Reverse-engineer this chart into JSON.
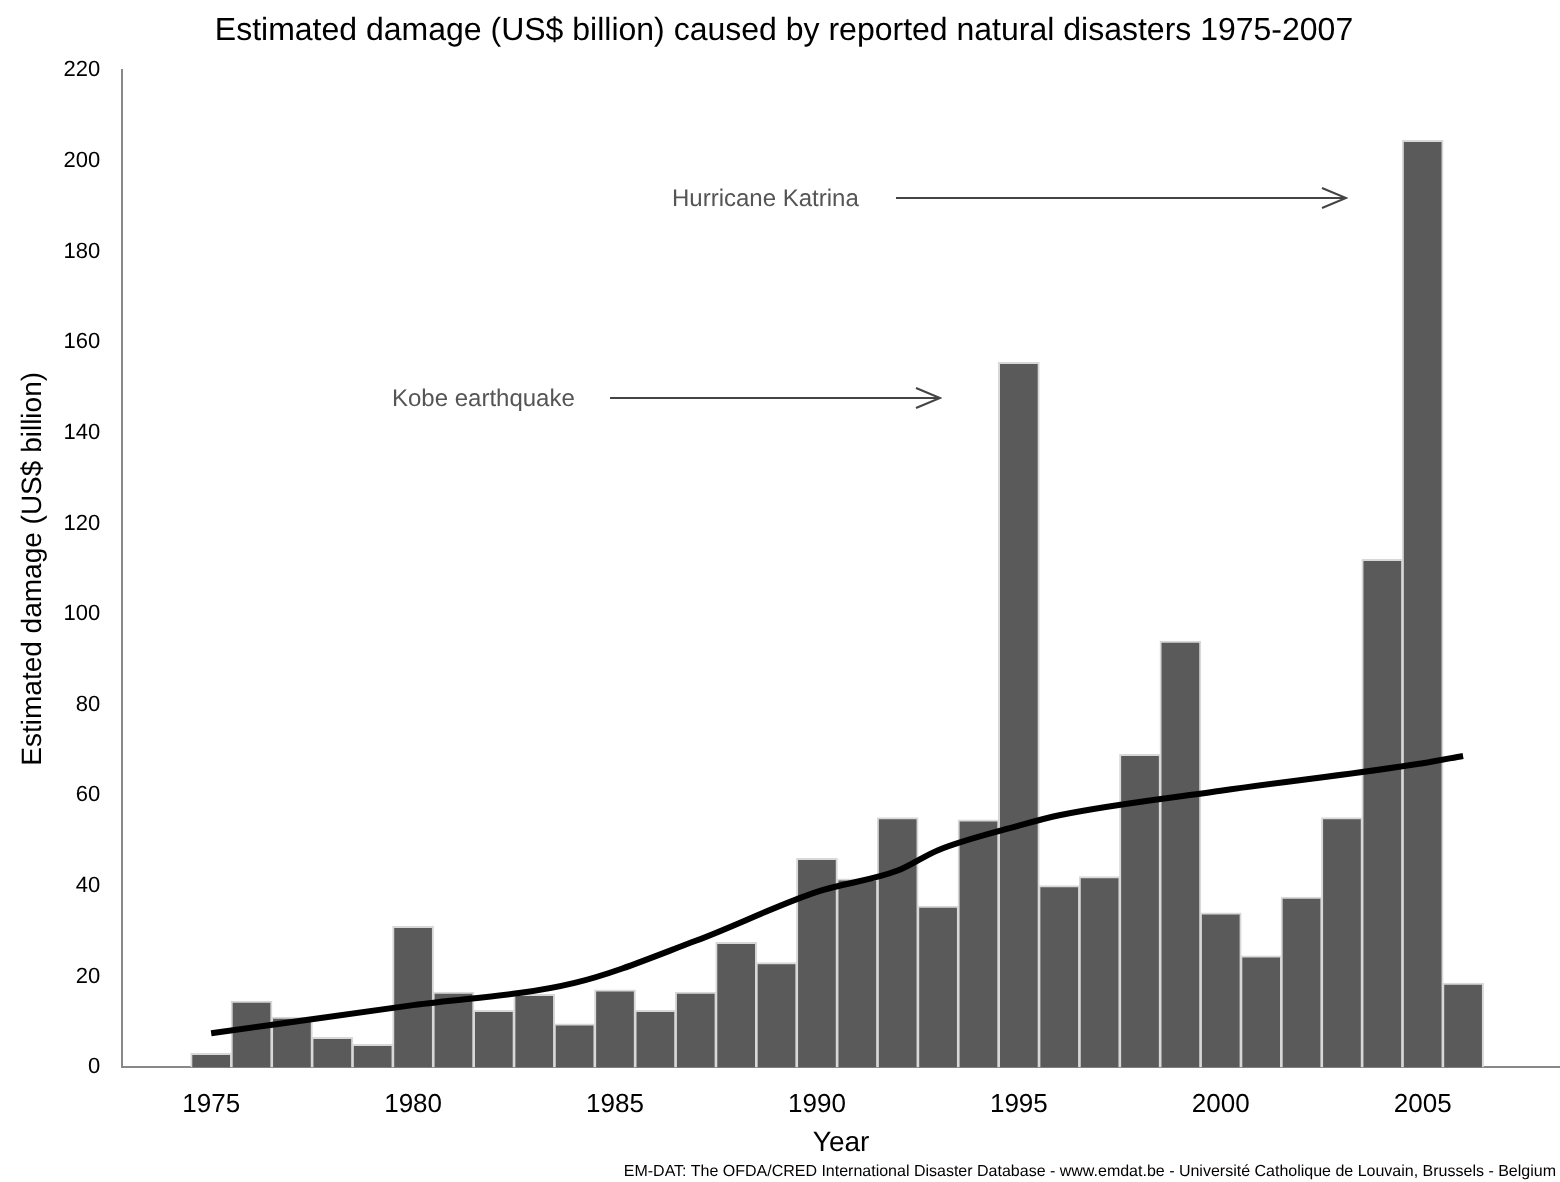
{
  "chart_data": {
    "type": "bar",
    "title": "Estimated damage (US$ billion) caused by reported natural disasters 1975-2007",
    "xlabel": "Year",
    "ylabel": "Estimated damage (US$ billion)",
    "xlim": [
      1972.8,
      2008.4
    ],
    "xticks": [
      1975,
      1980,
      1985,
      1990,
      1995,
      2000,
      2005
    ],
    "ylim": [
      0,
      220
    ],
    "yticks": [
      0,
      20,
      40,
      60,
      80,
      100,
      120,
      140,
      160,
      180,
      200,
      220
    ],
    "grid": false,
    "legend": false,
    "series": [
      {
        "color": "#5a5a5a",
        "x": [
          1975,
          1976,
          1977,
          1978,
          1979,
          1980,
          1981,
          1982,
          1983,
          1984,
          1985,
          1986,
          1987,
          1988,
          1989,
          1990,
          1991,
          1992,
          1993,
          1994,
          1995,
          1996,
          1997,
          1998,
          1999,
          2000,
          2001,
          2002,
          2003,
          2004,
          2005,
          2006
        ],
        "values": [
          3,
          14.5,
          11,
          6.5,
          5,
          31,
          16.5,
          12.5,
          16,
          9.5,
          17,
          12.5,
          16.5,
          27.5,
          23,
          46,
          41.5,
          55,
          35.5,
          54.5,
          155.5,
          40,
          42,
          69,
          94,
          34,
          24.5,
          37.5,
          55,
          112,
          204.5,
          18.5
        ]
      },
      {
        "type": "line",
        "color": "#000000",
        "x": [
          1975,
          1980,
          1984,
          1987,
          1990,
          1992,
          1993,
          1995,
          1996,
          2000,
          2005,
          2006
        ],
        "values": [
          7.5,
          13.7,
          18.6,
          27.9,
          38.7,
          43.4,
          47.9,
          53.3,
          55.6,
          61,
          67.1,
          68.7
        ]
      }
    ],
    "annotations": [
      "Kobe earthquake",
      "Hurricane Katrina",
      "EM-DAT: The OFDA/CRED International Disaster Database - www.emdat.be - Université Catholique de Louvain, Brussels - Belgium"
    ]
  }
}
